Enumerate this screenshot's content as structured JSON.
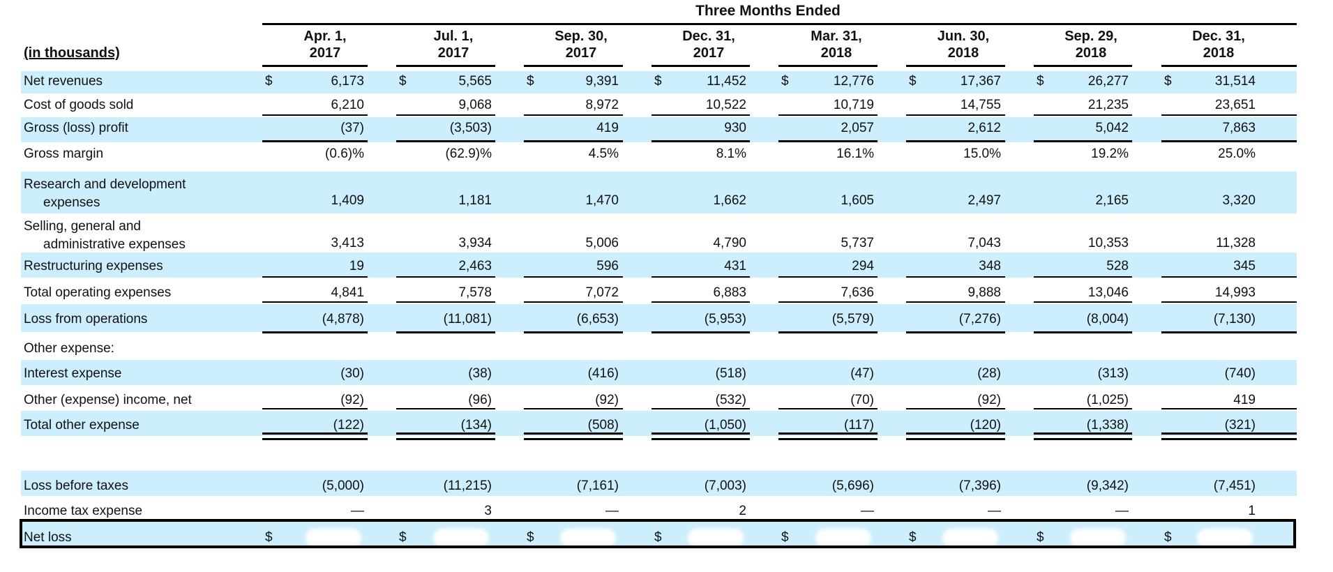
{
  "title": "Three Months Ended",
  "unit_label": "(in thousands)",
  "currency_symbol": "$",
  "columns": [
    {
      "line1": "Apr. 1,",
      "line2": "2017"
    },
    {
      "line1": "Jul. 1,",
      "line2": "2017"
    },
    {
      "line1": "Sep. 30,",
      "line2": "2017"
    },
    {
      "line1": "Dec. 31,",
      "line2": "2017"
    },
    {
      "line1": "Mar. 31,",
      "line2": "2018"
    },
    {
      "line1": "Jun. 30,",
      "line2": "2018"
    },
    {
      "line1": "Sep. 29,",
      "line2": "2018"
    },
    {
      "line1": "Dec. 31,",
      "line2": "2018"
    }
  ],
  "rows": [
    {
      "label": "Net revenues",
      "values": [
        "6,173",
        "5,565",
        "9,391",
        "11,452",
        "12,776",
        "17,367",
        "26,277",
        "31,514"
      ],
      "dollar": true,
      "shaded": true
    },
    {
      "label": "Cost of goods sold",
      "values": [
        "6,210",
        "9,068",
        "8,972",
        "10,522",
        "10,719",
        "14,755",
        "21,235",
        "23,651"
      ],
      "shaded": false
    },
    {
      "label": "Gross (loss) profit",
      "values": [
        "(37)",
        "(3,503)",
        "419",
        "930",
        "2,057",
        "2,612",
        "5,042",
        "7,863"
      ],
      "shaded": true
    },
    {
      "label": "Gross margin",
      "values": [
        "(0.6)%",
        "(62.9)%",
        "4.5%",
        "8.1%",
        "16.1%",
        "15.0%",
        "19.2%",
        "25.0%"
      ],
      "shaded": false
    },
    {
      "label": "Research and development",
      "label2": "expenses",
      "values": [
        "1,409",
        "1,181",
        "1,470",
        "1,662",
        "1,605",
        "2,497",
        "2,165",
        "3,320"
      ],
      "shaded": true
    },
    {
      "label": "Selling, general and",
      "label2": "administrative expenses",
      "values": [
        "3,413",
        "3,934",
        "5,006",
        "4,790",
        "5,737",
        "7,043",
        "10,353",
        "11,328"
      ],
      "shaded": false
    },
    {
      "label": "Restructuring expenses",
      "values": [
        "19",
        "2,463",
        "596",
        "431",
        "294",
        "348",
        "528",
        "345"
      ],
      "shaded": true
    },
    {
      "label": "Total operating expenses",
      "values": [
        "4,841",
        "7,578",
        "7,072",
        "6,883",
        "7,636",
        "9,888",
        "13,046",
        "14,993"
      ],
      "shaded": false
    },
    {
      "label": "Loss from operations",
      "values": [
        "(4,878)",
        "(11,081)",
        "(6,653)",
        "(5,953)",
        "(5,579)",
        "(7,276)",
        "(8,004)",
        "(7,130)"
      ],
      "shaded": true
    },
    {
      "label": "Other expense:",
      "values": [],
      "shaded": false
    },
    {
      "label": "Interest expense",
      "values": [
        "(30)",
        "(38)",
        "(416)",
        "(518)",
        "(47)",
        "(28)",
        "(313)",
        "(740)"
      ],
      "shaded": true
    },
    {
      "label": "Other (expense) income, net",
      "values": [
        "(92)",
        "(96)",
        "(92)",
        "(532)",
        "(70)",
        "(92)",
        "(1,025)",
        "419"
      ],
      "shaded": false
    },
    {
      "label": "Total other expense",
      "values": [
        "(122)",
        "(134)",
        "(508)",
        "(1,050)",
        "(117)",
        "(120)",
        "(1,338)",
        "(321)"
      ],
      "shaded": true
    },
    {
      "label": "Loss before taxes",
      "values": [
        "(5,000)",
        "(11,215)",
        "(7,161)",
        "(7,003)",
        "(5,696)",
        "(7,396)",
        "(9,342)",
        "(7,451)"
      ],
      "shaded": true
    },
    {
      "label": "Income tax expense",
      "values": [
        "—",
        "3",
        "—",
        "2",
        "—",
        "—",
        "—",
        "1"
      ],
      "shaded": false
    },
    {
      "label": "Net loss",
      "values": [],
      "dollar": true,
      "redacted": true,
      "shaded": true
    }
  ]
}
